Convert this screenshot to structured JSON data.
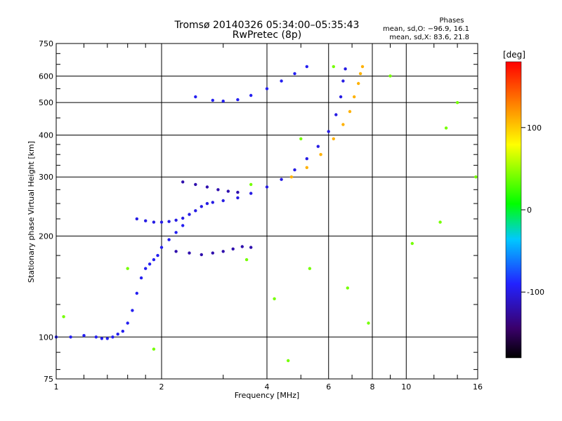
{
  "chart_data": {
    "type": "scatter",
    "title": "Tromsø 20140326 05:34:00–05:35:43",
    "subtitle": "RwPretec (8p)",
    "xlabel": "Frequency [MHz]",
    "ylabel": "Stationary phase Virtual Height [km]",
    "x_scale": "log",
    "y_scale": "log",
    "xlim": [
      1,
      16
    ],
    "ylim": [
      75,
      750
    ],
    "x_ticks": [
      1,
      2,
      4,
      6,
      8,
      10,
      16
    ],
    "y_ticks": [
      75,
      100,
      200,
      300,
      400,
      500,
      600,
      750
    ],
    "grid": true,
    "phases_header": "Phases",
    "stats": [
      "mean, sd,O: −96.9, 16.1",
      "mean, sd,X: 83.6, 21.8"
    ],
    "colorbar": {
      "label": "[deg]",
      "range": [
        -180,
        180
      ],
      "ticks": [
        100,
        0,
        -100
      ],
      "colors": [
        "#000000",
        "#3a006b",
        "#2222ff",
        "#00c8ff",
        "#00ff00",
        "#ffff00",
        "#ff8800",
        "#ff0000"
      ]
    },
    "series": [
      {
        "points": [
          [
            1.0,
            100
          ],
          [
            1.1,
            100
          ],
          [
            1.2,
            101
          ],
          [
            1.3,
            100
          ],
          [
            1.35,
            99
          ],
          [
            1.4,
            99
          ],
          [
            1.45,
            100
          ],
          [
            1.5,
            102
          ],
          [
            1.55,
            104
          ],
          [
            1.6,
            110
          ],
          [
            1.65,
            120
          ],
          [
            1.7,
            135
          ],
          [
            1.75,
            150
          ],
          [
            1.8,
            160
          ],
          [
            1.85,
            165
          ],
          [
            1.9,
            170
          ],
          [
            1.95,
            175
          ],
          [
            2.0,
            185
          ],
          [
            2.1,
            195
          ],
          [
            2.2,
            205
          ],
          [
            2.3,
            215
          ]
        ],
        "phase": -95
      },
      {
        "points": [
          [
            1.7,
            225
          ],
          [
            1.8,
            222
          ],
          [
            1.9,
            220
          ],
          [
            2.0,
            220
          ],
          [
            2.1,
            221
          ],
          [
            2.2,
            223
          ],
          [
            2.3,
            226
          ],
          [
            2.4,
            232
          ],
          [
            2.5,
            238
          ],
          [
            2.6,
            245
          ],
          [
            2.7,
            250
          ],
          [
            2.8,
            252
          ],
          [
            3.0,
            255
          ],
          [
            3.3,
            260
          ],
          [
            3.6,
            268
          ],
          [
            4.0,
            280
          ],
          [
            4.4,
            295
          ],
          [
            4.8,
            315
          ],
          [
            5.2,
            340
          ],
          [
            5.6,
            370
          ],
          [
            6.0,
            410
          ],
          [
            6.3,
            460
          ],
          [
            6.5,
            520
          ],
          [
            6.6,
            580
          ],
          [
            6.7,
            630
          ]
        ],
        "phase": -100
      },
      {
        "points": [
          [
            4.7,
            300
          ],
          [
            5.2,
            320
          ],
          [
            5.7,
            350
          ],
          [
            6.2,
            390
          ],
          [
            6.6,
            430
          ],
          [
            6.9,
            470
          ],
          [
            7.1,
            520
          ],
          [
            7.3,
            570
          ],
          [
            7.4,
            610
          ],
          [
            7.5,
            640
          ]
        ],
        "phase": 110
      },
      {
        "points": [
          [
            2.5,
            520
          ],
          [
            2.8,
            508
          ],
          [
            3.0,
            505
          ],
          [
            3.3,
            510
          ],
          [
            3.6,
            525
          ],
          [
            4.0,
            550
          ],
          [
            4.4,
            580
          ],
          [
            4.8,
            610
          ],
          [
            5.2,
            640
          ]
        ],
        "phase": -95
      },
      {
        "points": [
          [
            2.2,
            180
          ],
          [
            2.4,
            178
          ],
          [
            2.6,
            176
          ],
          [
            2.8,
            178
          ],
          [
            3.0,
            180
          ],
          [
            3.2,
            183
          ],
          [
            3.4,
            186
          ],
          [
            3.6,
            185
          ],
          [
            2.3,
            290
          ],
          [
            2.5,
            285
          ],
          [
            2.7,
            280
          ],
          [
            2.9,
            275
          ],
          [
            3.1,
            272
          ],
          [
            3.3,
            270
          ]
        ],
        "phase": -120
      },
      {
        "points": [
          [
            1.05,
            115
          ],
          [
            1.6,
            160
          ],
          [
            1.9,
            92
          ],
          [
            3.5,
            170
          ],
          [
            3.6,
            285
          ],
          [
            4.2,
            130
          ],
          [
            4.6,
            85
          ],
          [
            5.0,
            390
          ],
          [
            5.3,
            160
          ],
          [
            6.2,
            640
          ],
          [
            6.8,
            140
          ],
          [
            7.8,
            110
          ],
          [
            9.0,
            600
          ],
          [
            10.4,
            190
          ],
          [
            12.5,
            220
          ],
          [
            13.0,
            420
          ],
          [
            14.0,
            500
          ],
          [
            15.8,
            300
          ]
        ],
        "phase": 40
      }
    ]
  }
}
